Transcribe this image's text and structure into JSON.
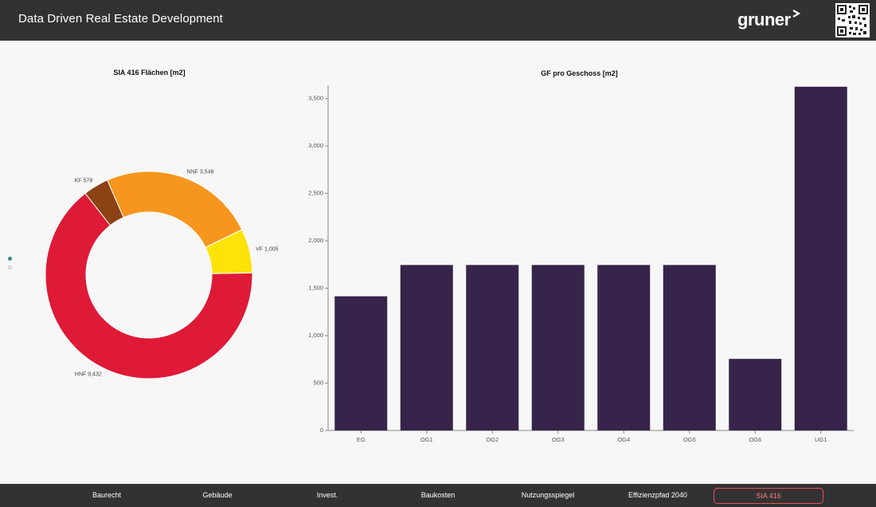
{
  "header": {
    "title": "Data Driven Real Estate Development",
    "brand": "gruner"
  },
  "pager": {
    "pages": 2,
    "active": 0
  },
  "nav": {
    "items": [
      {
        "label": "Baurecht",
        "active": false
      },
      {
        "label": "Gebäude",
        "active": false
      },
      {
        "label": "Invest.",
        "active": false
      },
      {
        "label": "Baukosten",
        "active": false
      },
      {
        "label": "Nutzungsspiegel",
        "active": false
      },
      {
        "label": "Effizienzpfad 2040",
        "active": false
      },
      {
        "label": "SIA 416",
        "active": true
      }
    ]
  },
  "colors": {
    "HNF": "#de1a37",
    "KF": "#8b4214",
    "NNF": "#f6961e",
    "VF": "#fde30a",
    "bar": "#36244a",
    "nav_active": "#e8505b"
  },
  "chart_data": [
    {
      "type": "pie",
      "title": "SIA 416 Flächen [m2]",
      "donut": true,
      "slices": [
        {
          "label": "KF",
          "value": 578,
          "display": "578"
        },
        {
          "label": "NNF",
          "value": 3548,
          "display": "3,548"
        },
        {
          "label": "VF",
          "value": 1005,
          "display": "1,005"
        },
        {
          "label": "HNF",
          "value": 9432,
          "display": "9,432"
        }
      ]
    },
    {
      "type": "bar",
      "title": "GF pro Geschoss [m2]",
      "categories": [
        "EG",
        "OG1",
        "OG2",
        "OG3",
        "OG4",
        "OG5",
        "OG6",
        "UG1"
      ],
      "values": [
        1415,
        1745,
        1745,
        1745,
        1745,
        1745,
        755,
        3625
      ],
      "ylim": [
        0,
        3640
      ],
      "yticks": [
        {
          "value": 0,
          "label": "0"
        },
        {
          "value": 500,
          "label": "500"
        },
        {
          "value": 1000,
          "label": "1,000"
        },
        {
          "value": 1500,
          "label": "1,500"
        },
        {
          "value": 2000,
          "label": "2,000"
        },
        {
          "value": 2500,
          "label": "2,500"
        },
        {
          "value": 3000,
          "label": "3,000"
        },
        {
          "value": 3500,
          "label": "3,500"
        }
      ],
      "grid": false
    }
  ]
}
